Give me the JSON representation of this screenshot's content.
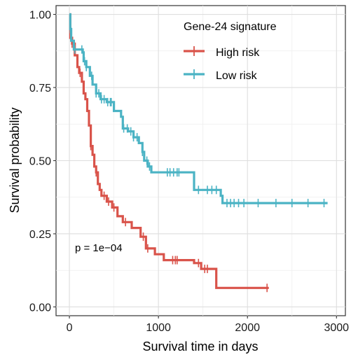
{
  "chart_data": {
    "type": "line",
    "subtype": "kaplan-meier survival curve",
    "title": "",
    "xlabel": "Survival time in days",
    "ylabel": "Survival probability",
    "xlim": [
      -150,
      3100
    ],
    "ylim": [
      -0.03,
      1.03
    ],
    "x_ticks": [
      0,
      1000,
      2000,
      3000
    ],
    "x_tick_labels": [
      "0",
      "1000",
      "2000",
      "3000"
    ],
    "y_ticks": [
      0,
      0.25,
      0.5,
      0.75,
      1.0
    ],
    "y_tick_labels": [
      "0.00",
      "0.25",
      "0.50",
      "0.75",
      "1.00"
    ],
    "grid": true,
    "legend": {
      "title": "Gene-24 signature",
      "position": "top-right",
      "entries": [
        "High risk",
        "Low  risk"
      ]
    },
    "annotation": "p = 1e−04",
    "series": [
      {
        "name": "High risk",
        "color": "#d9534a",
        "steps": [
          [
            0,
            1.0
          ],
          [
            10,
            0.92
          ],
          [
            30,
            0.9
          ],
          [
            60,
            0.86
          ],
          [
            90,
            0.82
          ],
          [
            110,
            0.8
          ],
          [
            140,
            0.77
          ],
          [
            160,
            0.73
          ],
          [
            180,
            0.71
          ],
          [
            200,
            0.67
          ],
          [
            220,
            0.62
          ],
          [
            240,
            0.55
          ],
          [
            260,
            0.52
          ],
          [
            280,
            0.48
          ],
          [
            300,
            0.46
          ],
          [
            320,
            0.42
          ],
          [
            340,
            0.4
          ],
          [
            360,
            0.38
          ],
          [
            420,
            0.36
          ],
          [
            480,
            0.34
          ],
          [
            540,
            0.31
          ],
          [
            600,
            0.29
          ],
          [
            700,
            0.27
          ],
          [
            800,
            0.24
          ],
          [
            860,
            0.2
          ],
          [
            960,
            0.18
          ],
          [
            1060,
            0.16
          ],
          [
            1400,
            0.15
          ],
          [
            1480,
            0.13
          ],
          [
            1650,
            0.065
          ],
          [
            2240,
            0.065
          ]
        ],
        "censor_x": [
          30,
          120,
          240,
          300,
          390,
          440,
          500,
          630,
          830,
          880,
          1160,
          1190,
          1210,
          1450,
          1520,
          1550,
          2220
        ]
      },
      {
        "name": "Low  risk",
        "color": "#4bb3c4",
        "steps": [
          [
            0,
            1.0
          ],
          [
            10,
            0.95
          ],
          [
            20,
            0.91
          ],
          [
            50,
            0.88
          ],
          [
            150,
            0.87
          ],
          [
            160,
            0.84
          ],
          [
            190,
            0.82
          ],
          [
            230,
            0.79
          ],
          [
            260,
            0.76
          ],
          [
            300,
            0.73
          ],
          [
            350,
            0.71
          ],
          [
            420,
            0.7
          ],
          [
            500,
            0.67
          ],
          [
            580,
            0.65
          ],
          [
            600,
            0.61
          ],
          [
            660,
            0.6
          ],
          [
            720,
            0.58
          ],
          [
            780,
            0.56
          ],
          [
            820,
            0.53
          ],
          [
            840,
            0.5
          ],
          [
            880,
            0.48
          ],
          [
            920,
            0.46
          ],
          [
            1400,
            0.4
          ],
          [
            1700,
            0.38
          ],
          [
            1720,
            0.355
          ],
          [
            2900,
            0.355
          ]
        ],
        "censor_x": [
          10,
          60,
          140,
          170,
          190,
          250,
          300,
          330,
          360,
          390,
          430,
          460,
          470,
          610,
          650,
          690,
          720,
          760,
          820,
          870,
          900,
          1100,
          1130,
          1170,
          1210,
          1230,
          1450,
          1550,
          1600,
          1650,
          1770,
          1810,
          1850,
          1900,
          1960,
          2120,
          2320,
          2500,
          2680,
          2860
        ]
      }
    ]
  }
}
